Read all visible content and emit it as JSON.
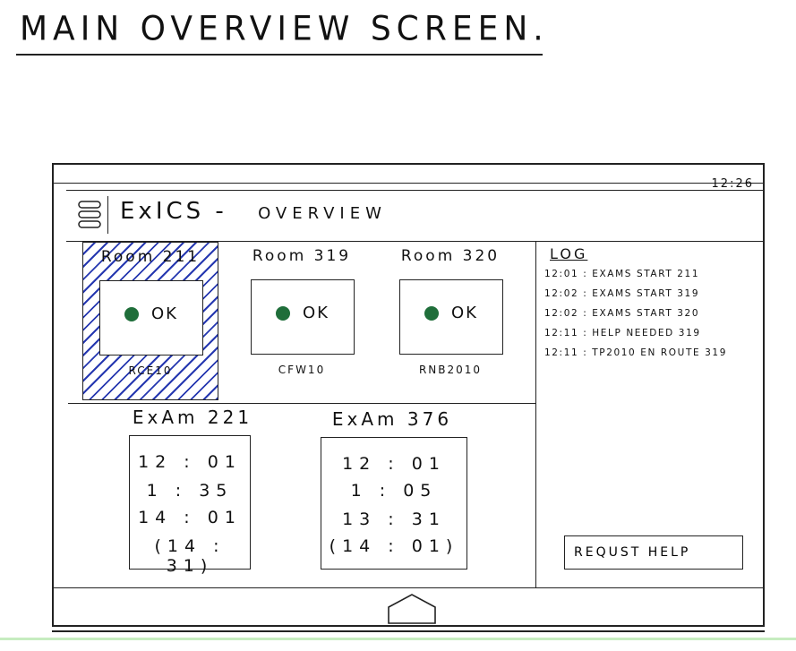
{
  "page": {
    "title": "MAIN OVERVIEW SCREEN."
  },
  "device": {
    "clock": "12:26",
    "header": {
      "title": "ExICS -",
      "subtitle": "OVERVIEW"
    },
    "rooms": [
      {
        "label": "Room 211",
        "status": "OK",
        "code": "RCE10",
        "selected": true
      },
      {
        "label": "Room 319",
        "status": "OK",
        "code": "CFW10",
        "selected": false
      },
      {
        "label": "Room 320",
        "status": "OK",
        "code": "RNB2010",
        "selected": false
      }
    ],
    "exams": [
      {
        "label": "ExAm 221",
        "lines": [
          "12 : 01",
          "1 : 35",
          "14 : 01",
          "(14 : 31)"
        ]
      },
      {
        "label": "ExAm 376",
        "lines": [
          "12 : 01",
          "1 : 05",
          "13 : 31",
          "(14 : 01)"
        ]
      }
    ],
    "log": {
      "title": "LOG",
      "entries": [
        "12:01 : EXAMS START 211",
        "12:02 : EXAMS START 319",
        "12:02 : EXAMS START 320",
        "12:11 : HELP NEEDED 319",
        "12:11 : TP2010 EN ROUTE 319"
      ]
    },
    "help_button": "REQUST HELP",
    "status_color": "#1f6e3a",
    "selection_hatch_color": "#2638b0"
  }
}
